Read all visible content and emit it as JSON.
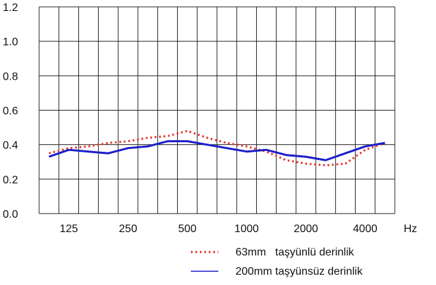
{
  "chart_data": {
    "type": "line",
    "xlabel": "",
    "ylabel": "",
    "x_unit": "Hz",
    "ylim": [
      0.0,
      1.2
    ],
    "y_ticks": [
      "0.0",
      "0.2",
      "0.4",
      "0.6",
      "0.8",
      "1.0",
      "1.2"
    ],
    "x_tick_labels": [
      "125",
      "250",
      "500",
      "1000",
      "2000",
      "4000"
    ],
    "grid": true,
    "legend_position": "bottom-right",
    "series": [
      {
        "name": "63mm   taşyünlü derinlik",
        "style": "dotted",
        "color": "#e0342a",
        "x": [
          100,
          125,
          160,
          200,
          250,
          315,
          400,
          500,
          630,
          800,
          1000,
          1250,
          1600,
          2000,
          2500,
          3150,
          4000,
          5000
        ],
        "values": [
          0.35,
          0.38,
          0.39,
          0.41,
          0.42,
          0.44,
          0.45,
          0.48,
          0.44,
          0.41,
          0.39,
          0.36,
          0.31,
          0.29,
          0.28,
          0.29,
          0.37,
          0.41
        ]
      },
      {
        "name": "200mm taşyünsüz derinlik",
        "style": "solid",
        "color": "#1c1ec8",
        "x": [
          100,
          125,
          160,
          200,
          250,
          315,
          400,
          500,
          630,
          800,
          1000,
          1250,
          1600,
          2000,
          2500,
          3150,
          4000,
          5000
        ],
        "values": [
          0.33,
          0.37,
          0.36,
          0.35,
          0.38,
          0.39,
          0.42,
          0.42,
          0.4,
          0.38,
          0.36,
          0.37,
          0.34,
          0.33,
          0.31,
          0.35,
          0.39,
          0.41
        ]
      }
    ]
  }
}
